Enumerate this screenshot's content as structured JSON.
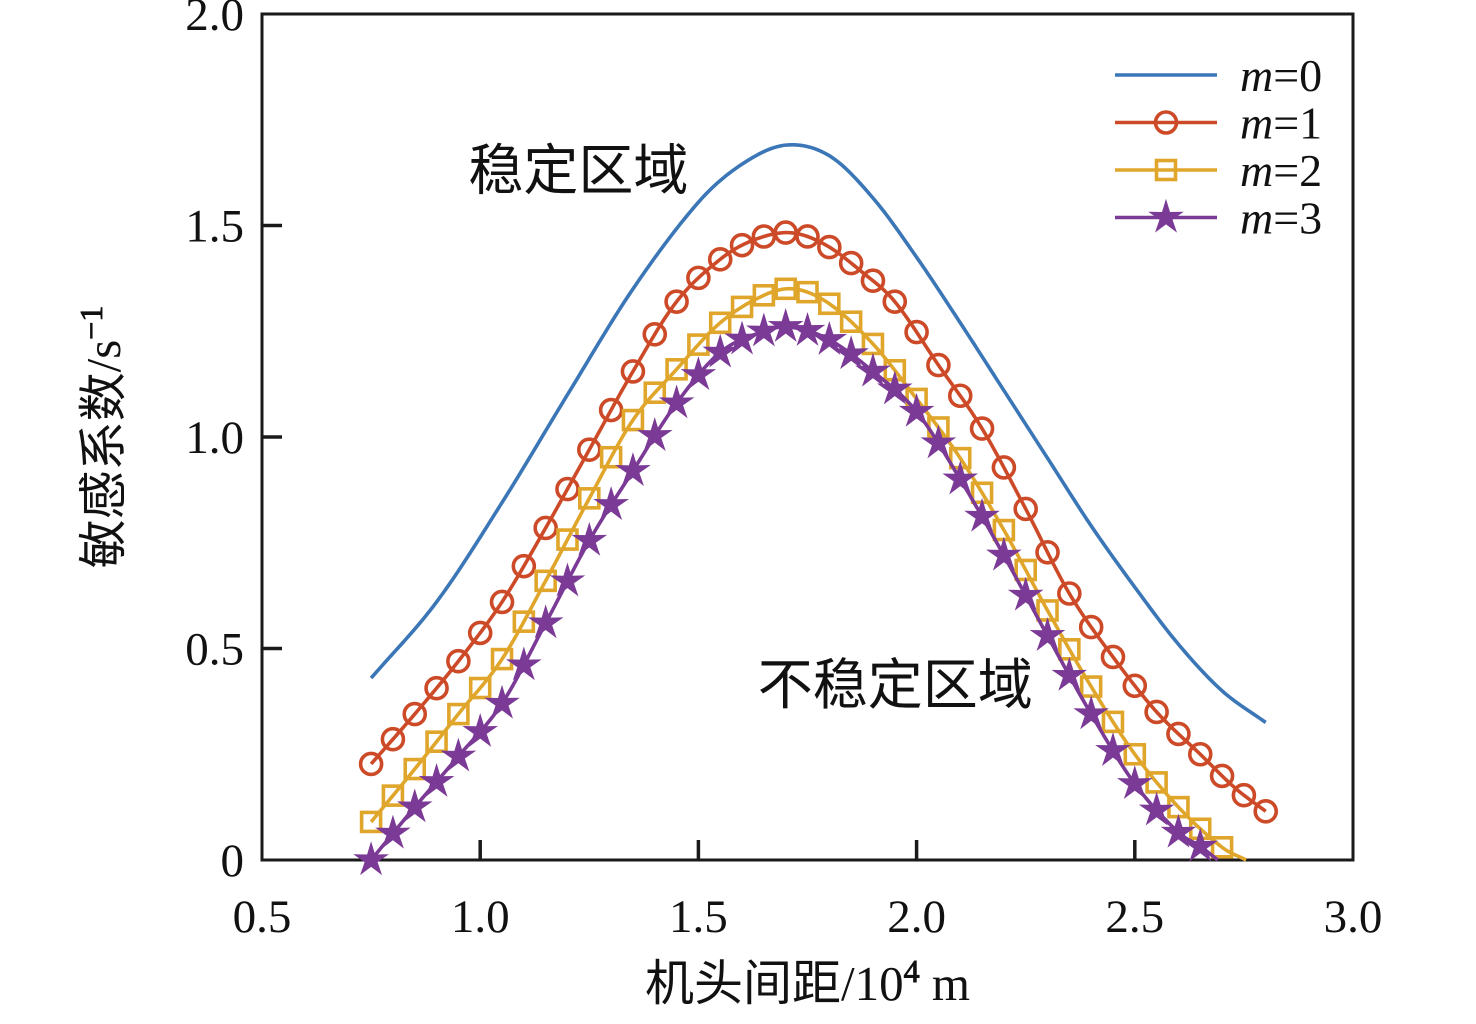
{
  "chart_data": {
    "type": "line",
    "xlabel_base": "机头间距/10",
    "xlabel_sup": "4",
    "xlabel_unit": " m",
    "ylabel_base": "敏感系数/s",
    "ylabel_sup": "−1",
    "xlim": [
      0.5,
      3.0
    ],
    "ylim": [
      0,
      2.0
    ],
    "xticks": [
      "0.5",
      "1.0",
      "1.5",
      "2.0",
      "2.5",
      "3.0"
    ],
    "yticks": [
      "0",
      "0.5",
      "1.0",
      "1.5",
      "2.0"
    ],
    "annotations": [
      {
        "text": "稳定区域",
        "x": 1.225,
        "y": 1.63
      },
      {
        "text": "不稳定区域",
        "x": 1.951,
        "y": 0.414
      }
    ],
    "legend": [
      "m=0",
      "m=1",
      "m=2",
      "m=3"
    ],
    "marker_step": 0.05,
    "series": [
      {
        "name": "m=0",
        "color": "#3B76B7",
        "marker": "none",
        "points": [
          [
            0.75,
            0.43
          ],
          [
            0.9,
            0.61
          ],
          [
            1.05,
            0.845
          ],
          [
            1.2,
            1.1
          ],
          [
            1.35,
            1.35
          ],
          [
            1.5,
            1.555
          ],
          [
            1.6,
            1.645
          ],
          [
            1.7,
            1.69
          ],
          [
            1.8,
            1.665
          ],
          [
            1.9,
            1.565
          ],
          [
            2.0,
            1.425
          ],
          [
            2.1,
            1.27
          ],
          [
            2.2,
            1.11
          ],
          [
            2.3,
            0.95
          ],
          [
            2.4,
            0.79
          ],
          [
            2.5,
            0.645
          ],
          [
            2.6,
            0.51
          ],
          [
            2.7,
            0.4
          ],
          [
            2.8,
            0.325
          ]
        ]
      },
      {
        "name": "m=1",
        "color": "#CD4A28",
        "marker": "circle",
        "marker_from": 0.75,
        "marker_to": 2.8,
        "points": [
          [
            0.75,
            0.227
          ],
          [
            0.85,
            0.345
          ],
          [
            0.95,
            0.47
          ],
          [
            1.05,
            0.61
          ],
          [
            1.15,
            0.785
          ],
          [
            1.25,
            0.97
          ],
          [
            1.35,
            1.155
          ],
          [
            1.45,
            1.32
          ],
          [
            1.55,
            1.42
          ],
          [
            1.625,
            1.465
          ],
          [
            1.71,
            1.483
          ],
          [
            1.79,
            1.455
          ],
          [
            1.875,
            1.39
          ],
          [
            1.95,
            1.32
          ],
          [
            2.05,
            1.17
          ],
          [
            2.15,
            1.02
          ],
          [
            2.25,
            0.83
          ],
          [
            2.35,
            0.63
          ],
          [
            2.45,
            0.48
          ],
          [
            2.55,
            0.35
          ],
          [
            2.65,
            0.25
          ],
          [
            2.73,
            0.17
          ],
          [
            2.8,
            0.115
          ]
        ]
      },
      {
        "name": "m=2",
        "color": "#E0A62B",
        "marker": "square",
        "marker_from": 0.75,
        "marker_to": 2.72,
        "points": [
          [
            0.75,
            0.09
          ],
          [
            0.85,
            0.215
          ],
          [
            0.95,
            0.345
          ],
          [
            1.05,
            0.475
          ],
          [
            1.15,
            0.66
          ],
          [
            1.25,
            0.855
          ],
          [
            1.35,
            1.04
          ],
          [
            1.45,
            1.16
          ],
          [
            1.55,
            1.27
          ],
          [
            1.65,
            1.335
          ],
          [
            1.72,
            1.35
          ],
          [
            1.8,
            1.315
          ],
          [
            1.9,
            1.22
          ],
          [
            2.0,
            1.09
          ],
          [
            2.1,
            0.95
          ],
          [
            2.2,
            0.78
          ],
          [
            2.3,
            0.59
          ],
          [
            2.4,
            0.41
          ],
          [
            2.5,
            0.25
          ],
          [
            2.6,
            0.125
          ],
          [
            2.7,
            0.03
          ],
          [
            2.755,
            0.0
          ]
        ]
      },
      {
        "name": "m=3",
        "color": "#7B3A96",
        "marker": "star",
        "marker_from": 0.75,
        "marker_to": 2.66,
        "points": [
          [
            0.75,
            0.0
          ],
          [
            0.85,
            0.125
          ],
          [
            0.95,
            0.245
          ],
          [
            1.05,
            0.37
          ],
          [
            1.15,
            0.56
          ],
          [
            1.25,
            0.755
          ],
          [
            1.35,
            0.92
          ],
          [
            1.45,
            1.08
          ],
          [
            1.55,
            1.2
          ],
          [
            1.65,
            1.25
          ],
          [
            1.71,
            1.26
          ],
          [
            1.8,
            1.23
          ],
          [
            1.9,
            1.155
          ],
          [
            2.0,
            1.06
          ],
          [
            2.1,
            0.9
          ],
          [
            2.2,
            0.72
          ],
          [
            2.3,
            0.53
          ],
          [
            2.4,
            0.345
          ],
          [
            2.5,
            0.18
          ],
          [
            2.6,
            0.065
          ],
          [
            2.65,
            0.032
          ],
          [
            2.69,
            0.0
          ]
        ]
      }
    ]
  }
}
